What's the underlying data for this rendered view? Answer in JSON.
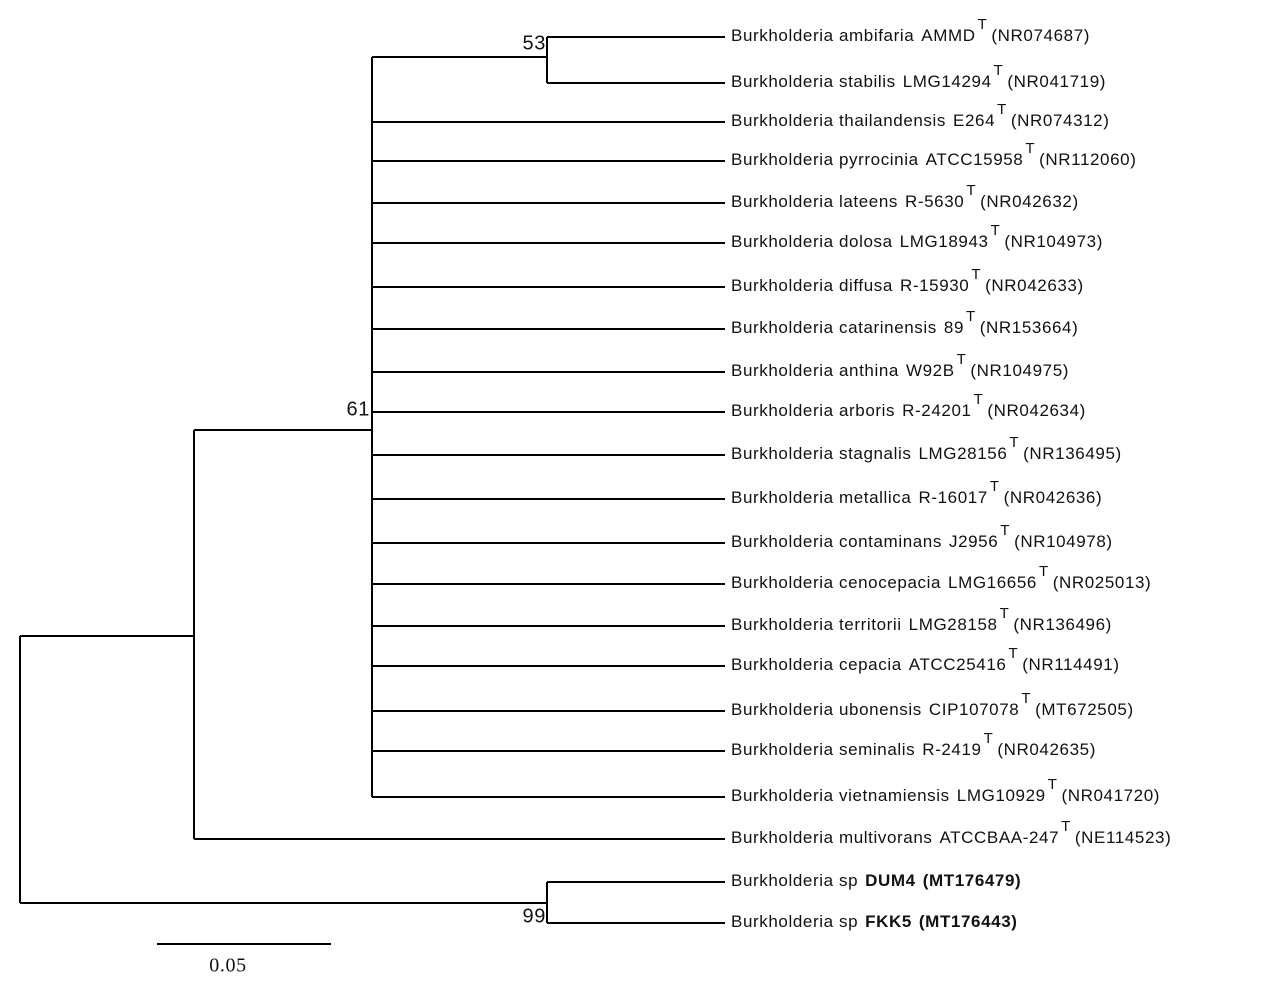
{
  "tree": {
    "leaves": [
      {
        "name": "Burkholderia ambifaria",
        "strain": "AMMD",
        "type_strain": "T",
        "accession": "(NR074687)"
      },
      {
        "name": "Burkholderia stabilis",
        "strain": "LMG14294",
        "type_strain": "T",
        "accession": "(NR041719)"
      },
      {
        "name": "Burkholderia thailandensis",
        "strain": "E264",
        "type_strain": "T",
        "accession": "(NR074312)"
      },
      {
        "name": "Burkholderia pyrrocinia",
        "strain": "ATCC15958",
        "type_strain": "T",
        "accession": "(NR112060)"
      },
      {
        "name": "Burkholderia lateens",
        "strain": "R-5630",
        "type_strain": "T",
        "accession": "(NR042632)"
      },
      {
        "name": "Burkholderia dolosa",
        "strain": "LMG18943",
        "type_strain": "T",
        "accession": "(NR104973)"
      },
      {
        "name": "Burkholderia diffusa",
        "strain": "R-15930",
        "type_strain": "T",
        "accession": "(NR042633)"
      },
      {
        "name": "Burkholderia catarinensis",
        "strain": "89",
        "type_strain": "T",
        "accession": "(NR153664)"
      },
      {
        "name": "Burkholderia anthina",
        "strain": "W92B",
        "type_strain": "T",
        "accession": "(NR104975)"
      },
      {
        "name": "Burkholderia arboris",
        "strain": "R-24201",
        "type_strain": "T",
        "accession": "(NR042634)"
      },
      {
        "name": "Burkholderia stagnalis",
        "strain": "LMG28156",
        "type_strain": "T",
        "accession": "(NR136495)"
      },
      {
        "name": "Burkholderia metallica",
        "strain": "R-16017",
        "type_strain": "T",
        "accession": "(NR042636)"
      },
      {
        "name": "Burkholderia contaminans",
        "strain": "J2956",
        "type_strain": "T",
        "accession": "(NR104978)"
      },
      {
        "name": "Burkholderia cenocepacia",
        "strain": "LMG16656",
        "type_strain": "T",
        "accession": "(NR025013)"
      },
      {
        "name": "Burkholderia territorii",
        "strain": "LMG28158",
        "type_strain": "T",
        "accession": "(NR136496)"
      },
      {
        "name": "Burkholderia cepacia",
        "strain": "ATCC25416",
        "type_strain": "T",
        "accession": "(NR114491)"
      },
      {
        "name": "Burkholderia ubonensis",
        "strain": "CIP107078",
        "type_strain": "T",
        "accession": "(MT672505)"
      },
      {
        "name": "Burkholderia seminalis",
        "strain": "R-2419",
        "type_strain": "T",
        "accession": "(NR042635)"
      },
      {
        "name": "Burkholderia vietnamiensis",
        "strain": "LMG10929",
        "type_strain": "T",
        "accession": "(NR041720)"
      },
      {
        "name": "Burkholderia multivorans",
        "strain": "ATCCBAA-247",
        "type_strain": "T",
        "accession": "(NE114523)"
      },
      {
        "name": "Burkholderia sp",
        "strain": "DUM4",
        "accession": "(MT176479)",
        "bold": true
      },
      {
        "name": "Burkholderia sp",
        "strain": "FKK5",
        "accession": "(MT176443)",
        "bold": true
      }
    ],
    "bootstrap": [
      53,
      61,
      99
    ],
    "scale_bar": 0.05
  }
}
